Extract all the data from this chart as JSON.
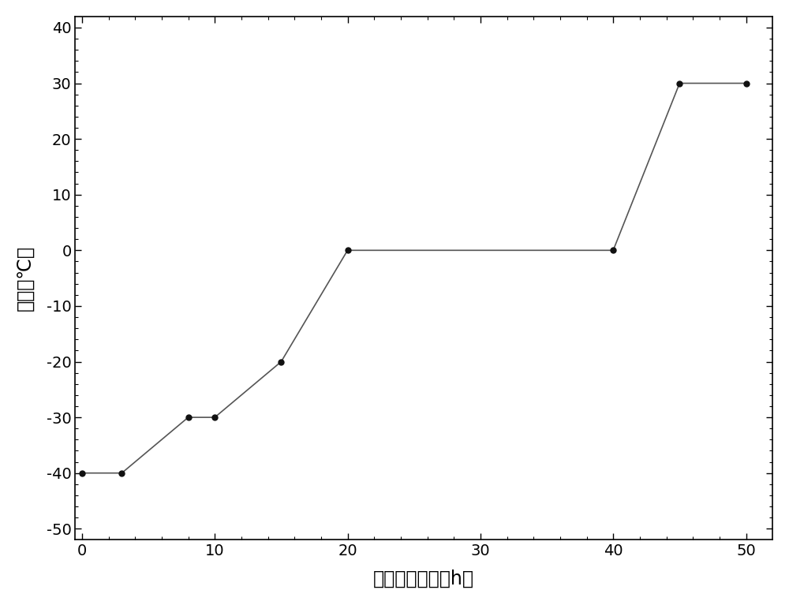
{
  "lx": [
    0,
    3,
    8,
    10,
    15,
    20,
    40,
    45,
    50
  ],
  "ly": [
    -40,
    -40,
    -30,
    -30,
    -20,
    0,
    0,
    30,
    30
  ],
  "line_color": "#555555",
  "marker_color": "#111111",
  "marker_size": 5,
  "xlabel": "冷冻干燥时间（h）",
  "ylabel": "温度（℃）",
  "xlim": [
    -0.5,
    52
  ],
  "ylim": [
    -52,
    42
  ],
  "xticks": [
    0,
    10,
    20,
    30,
    40,
    50
  ],
  "yticks": [
    -50,
    -40,
    -30,
    -20,
    -10,
    0,
    10,
    20,
    30,
    40
  ],
  "background_color": "#ffffff",
  "xlabel_fontsize": 17,
  "ylabel_fontsize": 17,
  "tick_fontsize": 14
}
